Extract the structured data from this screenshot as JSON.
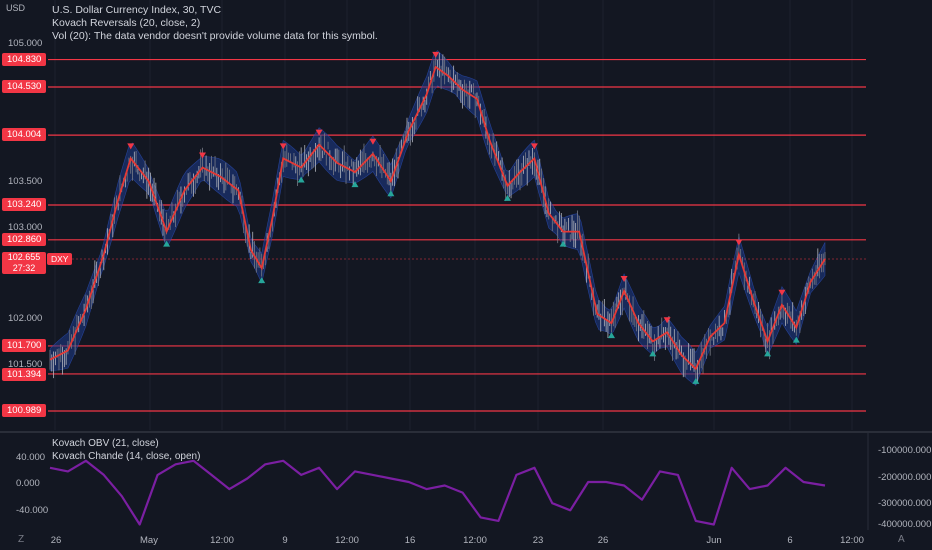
{
  "header": {
    "currency_label": "USD",
    "symbol_line": "U.S. Dollar Currency Index, 30, TVC",
    "indicator_line": "Kovach Reversals (20, close, 2)",
    "volume_line": "Vol (20): The data vendor doesn't provide volume data for this symbol."
  },
  "price_axis": {
    "ticks": [
      "105.000",
      "103.500",
      "103.000",
      "102.000",
      "101.500"
    ]
  },
  "levels": [
    "104.830",
    "104.530",
    "104.004",
    "103.240",
    "102.860",
    "101.700",
    "101.394",
    "100.989"
  ],
  "current": {
    "price": "102.655",
    "countdown": "27:32",
    "symbol": "DXY"
  },
  "oscillator": {
    "legend_obv": "Kovach OBV (21, close)",
    "legend_chande": "Kovach Chande (14, close, open)",
    "left_ticks": [
      "40.000",
      "0.000",
      "-40.000"
    ],
    "right_ticks": [
      "-100000.000",
      "-200000.000",
      "-300000.000",
      "-400000.000"
    ]
  },
  "time_axis": {
    "ticks": [
      "26",
      "May",
      "12:00",
      "9",
      "12:00",
      "16",
      "12:00",
      "23",
      "26",
      "Jun",
      "6",
      "12:00"
    ]
  },
  "corners": {
    "left": "Z",
    "right": "A"
  },
  "colors": {
    "background": "#131722",
    "level_line": "#f23645",
    "price_line": "#e53935",
    "band": "#1e3a8a",
    "up_marker": "#26a69a",
    "down_marker": "#f23645",
    "oscillator": "#7b1fa2"
  },
  "chart_data": {
    "type": "line",
    "price_ylim": [
      100.9,
      105.1
    ],
    "price_path": [
      [
        0,
        101.55
      ],
      [
        10,
        101.65
      ],
      [
        20,
        102.1
      ],
      [
        30,
        102.7
      ],
      [
        38,
        103.3
      ],
      [
        45,
        103.75
      ],
      [
        55,
        103.5
      ],
      [
        65,
        102.95
      ],
      [
        75,
        103.4
      ],
      [
        85,
        103.65
      ],
      [
        95,
        103.55
      ],
      [
        105,
        103.4
      ],
      [
        112,
        102.75
      ],
      [
        118,
        102.55
      ],
      [
        124,
        103.1
      ],
      [
        130,
        103.75
      ],
      [
        140,
        103.65
      ],
      [
        150,
        103.9
      ],
      [
        160,
        103.7
      ],
      [
        170,
        103.6
      ],
      [
        180,
        103.8
      ],
      [
        190,
        103.5
      ],
      [
        200,
        104.05
      ],
      [
        210,
        104.45
      ],
      [
        215,
        104.75
      ],
      [
        222,
        104.65
      ],
      [
        230,
        104.5
      ],
      [
        238,
        104.4
      ],
      [
        245,
        103.95
      ],
      [
        255,
        103.45
      ],
      [
        262,
        103.6
      ],
      [
        270,
        103.75
      ],
      [
        278,
        103.15
      ],
      [
        286,
        102.95
      ],
      [
        295,
        102.95
      ],
      [
        305,
        102.05
      ],
      [
        313,
        101.95
      ],
      [
        320,
        102.3
      ],
      [
        328,
        101.95
      ],
      [
        336,
        101.75
      ],
      [
        344,
        101.85
      ],
      [
        352,
        101.6
      ],
      [
        360,
        101.45
      ],
      [
        368,
        101.8
      ],
      [
        376,
        101.95
      ],
      [
        384,
        102.7
      ],
      [
        392,
        102.2
      ],
      [
        400,
        101.75
      ],
      [
        408,
        102.15
      ],
      [
        416,
        101.9
      ],
      [
        424,
        102.4
      ],
      [
        432,
        102.65
      ]
    ],
    "oscillator_path": [
      [
        0,
        20
      ],
      [
        10,
        15
      ],
      [
        20,
        30
      ],
      [
        30,
        10
      ],
      [
        40,
        -20
      ],
      [
        50,
        -60
      ],
      [
        60,
        10
      ],
      [
        70,
        25
      ],
      [
        80,
        30
      ],
      [
        90,
        10
      ],
      [
        100,
        -10
      ],
      [
        110,
        5
      ],
      [
        120,
        25
      ],
      [
        130,
        30
      ],
      [
        140,
        10
      ],
      [
        150,
        20
      ],
      [
        160,
        -10
      ],
      [
        170,
        15
      ],
      [
        180,
        10
      ],
      [
        190,
        5
      ],
      [
        200,
        0
      ],
      [
        210,
        -10
      ],
      [
        220,
        -5
      ],
      [
        230,
        -15
      ],
      [
        240,
        -50
      ],
      [
        250,
        -55
      ],
      [
        260,
        10
      ],
      [
        270,
        20
      ],
      [
        280,
        -30
      ],
      [
        290,
        -40
      ],
      [
        300,
        0
      ],
      [
        310,
        0
      ],
      [
        320,
        -5
      ],
      [
        330,
        -25
      ],
      [
        340,
        15
      ],
      [
        350,
        10
      ],
      [
        360,
        -55
      ],
      [
        370,
        -60
      ],
      [
        380,
        20
      ],
      [
        390,
        -10
      ],
      [
        400,
        -5
      ],
      [
        410,
        20
      ],
      [
        420,
        0
      ],
      [
        432,
        -5
      ]
    ],
    "osc_ylim": [
      -65,
      65
    ],
    "x_range": [
      0,
      432
    ]
  }
}
